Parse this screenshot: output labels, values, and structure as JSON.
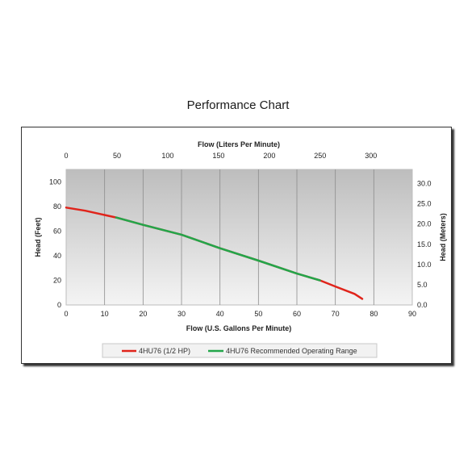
{
  "title": "Performance Chart",
  "chart_data": {
    "type": "line",
    "xlabel": "Flow (U.S. Gallons Per Minute)",
    "x2label": "Flow (Liters Per Minute)",
    "ylabel": "Head (Feet)",
    "y2label": "Head (Meters)",
    "xlim": [
      0,
      90
    ],
    "ylim": [
      0,
      110
    ],
    "x2lim": [
      0,
      340.7
    ],
    "y2lim": [
      0,
      33.5
    ],
    "xticks": [
      0,
      10,
      20,
      30,
      40,
      50,
      60,
      70,
      80,
      90
    ],
    "yticks": [
      0,
      20,
      40,
      60,
      80,
      100
    ],
    "x2ticks": [
      0,
      50,
      100,
      150,
      200,
      250,
      300
    ],
    "y2ticks": [
      "0.0",
      "5.0",
      "10.0",
      "15.0",
      "20.0",
      "25.0",
      "30.0"
    ],
    "grid": true,
    "legend_position": "bottom",
    "series": [
      {
        "name": "4HU76 (1/2 HP)",
        "color": "#e0241b",
        "x": [
          0,
          5,
          10,
          13,
          20,
          30,
          40,
          50,
          60,
          66,
          70,
          75,
          77
        ],
        "y": [
          79,
          76.5,
          73,
          71,
          65,
          57,
          46,
          36,
          25.5,
          20,
          15,
          9,
          5
        ]
      },
      {
        "name": "4HU76 Recommended Operating Range",
        "color": "#23a64a",
        "x": [
          13,
          20,
          30,
          40,
          50,
          60,
          66
        ],
        "y": [
          71,
          65,
          57,
          46,
          36,
          25.5,
          20
        ]
      }
    ]
  }
}
